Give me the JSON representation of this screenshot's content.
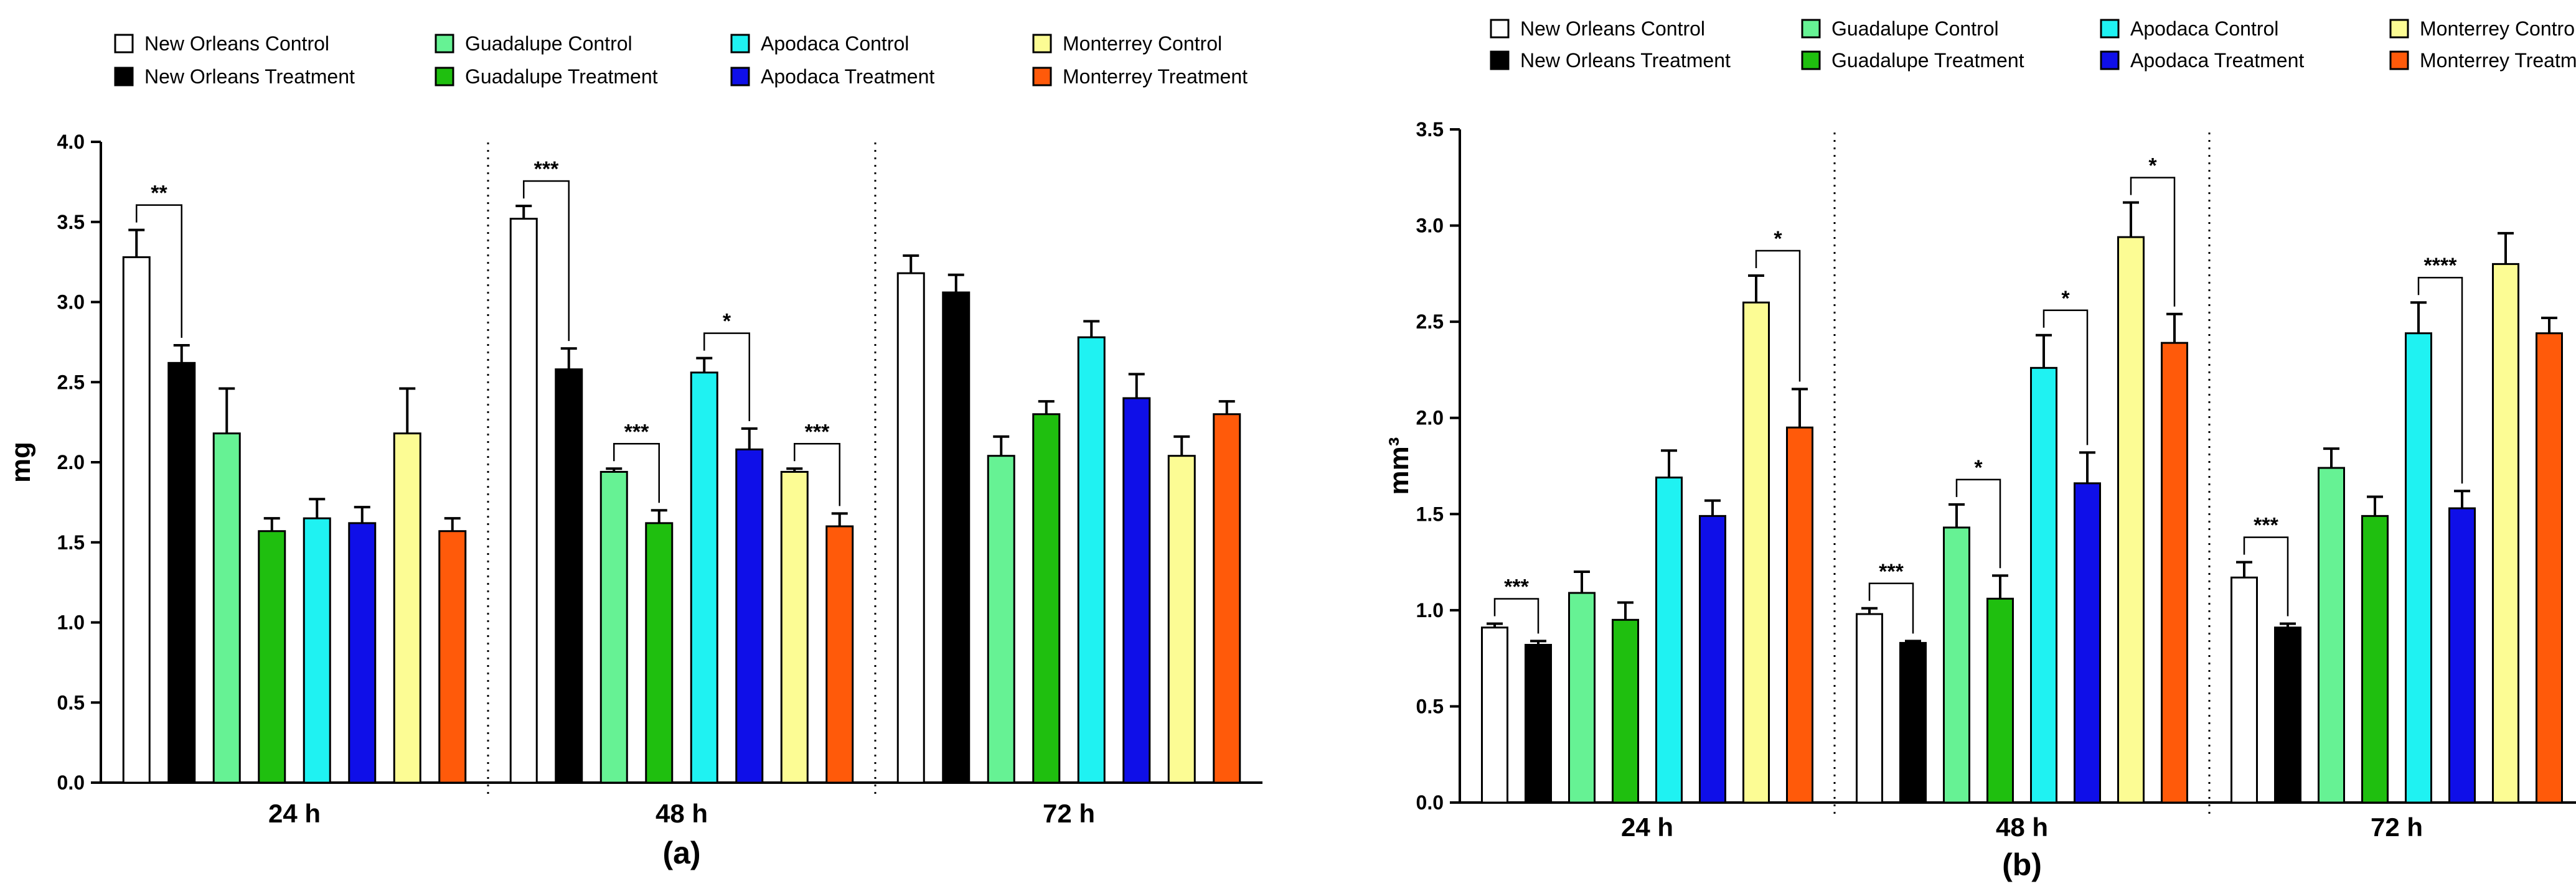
{
  "colors": {
    "new_orleans_control": "#ffffff",
    "new_orleans_treatment": "#000000",
    "guadalupe_control": "#66f294",
    "guadalupe_treatment": "#1fbf0f",
    "apodaca_control": "#1ff2f2",
    "apodaca_treatment": "#0f0fe8",
    "monterrey_control": "#fcfc94",
    "monterrey_treatment": "#ff5a0a"
  },
  "chart_data": [
    {
      "type": "bar",
      "panel_label": "(a)",
      "ylabel": "mg",
      "xlabel": "",
      "ylim": [
        0,
        4.0
      ],
      "yticks": [
        "0.0",
        "0.5",
        "1.0",
        "1.5",
        "2.0",
        "2.5",
        "3.0",
        "3.5",
        "4.0"
      ],
      "categories": [
        "24 h",
        "48 h",
        "72 h"
      ],
      "legend_position": "top",
      "series": [
        {
          "name": "New Orleans Control",
          "values": [
            3.28,
            3.52,
            3.18
          ],
          "errors": [
            0.17,
            0.08,
            0.11
          ]
        },
        {
          "name": "New Orleans Treatment",
          "values": [
            2.62,
            2.58,
            3.06
          ],
          "errors": [
            0.11,
            0.13,
            0.11
          ]
        },
        {
          "name": "Guadalupe Control",
          "values": [
            2.18,
            1.94,
            2.04
          ],
          "errors": [
            0.28,
            0.02,
            0.12
          ]
        },
        {
          "name": "Guadalupe Treatment",
          "values": [
            1.57,
            1.62,
            2.3
          ],
          "errors": [
            0.08,
            0.08,
            0.08
          ]
        },
        {
          "name": "Apodaca Control",
          "values": [
            1.65,
            2.56,
            2.78
          ],
          "errors": [
            0.12,
            0.09,
            0.1
          ]
        },
        {
          "name": "Apodaca Treatment",
          "values": [
            1.62,
            2.08,
            2.4
          ],
          "errors": [
            0.1,
            0.13,
            0.15
          ]
        },
        {
          "name": "Monterrey Control",
          "values": [
            2.18,
            1.94,
            2.04
          ],
          "errors": [
            0.28,
            0.02,
            0.12
          ]
        },
        {
          "name": "Monterrey Treatment",
          "values": [
            1.57,
            1.6,
            2.3
          ],
          "errors": [
            0.08,
            0.08,
            0.08
          ]
        }
      ],
      "annotations": [
        {
          "group": 0,
          "from": 0,
          "to": 1,
          "text": "**"
        },
        {
          "group": 1,
          "from": 0,
          "to": 1,
          "text": "***"
        },
        {
          "group": 1,
          "from": 2,
          "to": 3,
          "text": "***"
        },
        {
          "group": 1,
          "from": 4,
          "to": 5,
          "text": "*"
        },
        {
          "group": 1,
          "from": 6,
          "to": 7,
          "text": "***"
        }
      ]
    },
    {
      "type": "bar",
      "panel_label": "(b)",
      "ylabel": "mm³",
      "xlabel": "",
      "ylim": [
        0,
        3.5
      ],
      "yticks": [
        "0.0",
        "0.5",
        "1.0",
        "1.5",
        "2.0",
        "2.5",
        "3.0",
        "3.5"
      ],
      "categories": [
        "24 h",
        "48 h",
        "72 h"
      ],
      "legend_position": "top",
      "series": [
        {
          "name": "New Orleans Control",
          "values": [
            0.91,
            0.98,
            1.17
          ],
          "errors": [
            0.02,
            0.03,
            0.08
          ]
        },
        {
          "name": "New Orleans Treatment",
          "values": [
            0.82,
            0.83,
            0.91
          ],
          "errors": [
            0.02,
            0.01,
            0.02
          ]
        },
        {
          "name": "Guadalupe Control",
          "values": [
            1.09,
            1.43,
            1.74
          ],
          "errors": [
            0.11,
            0.12,
            0.1
          ]
        },
        {
          "name": "Guadalupe Treatment",
          "values": [
            0.95,
            1.06,
            1.49
          ],
          "errors": [
            0.09,
            0.12,
            0.1
          ]
        },
        {
          "name": "Apodaca Control",
          "values": [
            1.69,
            2.26,
            2.44
          ],
          "errors": [
            0.14,
            0.17,
            0.16
          ]
        },
        {
          "name": "Apodaca Treatment",
          "values": [
            1.49,
            1.66,
            1.53
          ],
          "errors": [
            0.08,
            0.16,
            0.09
          ]
        },
        {
          "name": "Monterrey Control",
          "values": [
            2.6,
            2.94,
            2.8
          ],
          "errors": [
            0.14,
            0.18,
            0.16
          ]
        },
        {
          "name": "Monterrey Treatment",
          "values": [
            1.95,
            2.39,
            2.44
          ],
          "errors": [
            0.2,
            0.15,
            0.08
          ]
        }
      ],
      "annotations": [
        {
          "group": 0,
          "from": 0,
          "to": 1,
          "text": "***"
        },
        {
          "group": 0,
          "from": 6,
          "to": 7,
          "text": "*"
        },
        {
          "group": 1,
          "from": 0,
          "to": 1,
          "text": "***"
        },
        {
          "group": 1,
          "from": 2,
          "to": 3,
          "text": "*"
        },
        {
          "group": 1,
          "from": 4,
          "to": 5,
          "text": "*"
        },
        {
          "group": 1,
          "from": 6,
          "to": 7,
          "text": "*"
        },
        {
          "group": 2,
          "from": 0,
          "to": 1,
          "text": "***"
        },
        {
          "group": 2,
          "from": 4,
          "to": 5,
          "text": "****"
        }
      ]
    }
  ]
}
